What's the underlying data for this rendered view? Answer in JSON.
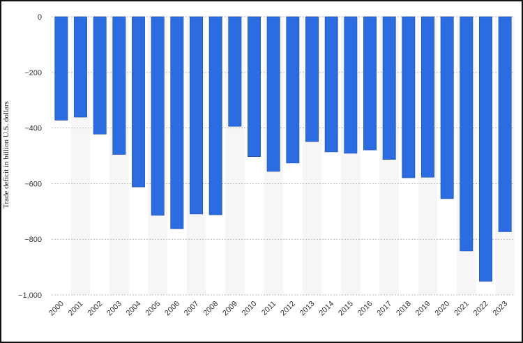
{
  "chart_data": {
    "type": "bar",
    "ylabel": "Trade deficit in billion U.S. dollars",
    "xlabel": "",
    "title": "",
    "categories": [
      "2000",
      "2001",
      "2002",
      "2003",
      "2004",
      "2005",
      "2006",
      "2007",
      "2008",
      "2009",
      "2010",
      "2011",
      "2012",
      "2013",
      "2014",
      "2015",
      "2016",
      "2017",
      "2018",
      "2019",
      "2020",
      "2021",
      "2022",
      "2023"
    ],
    "values": [
      -372,
      -361,
      -422,
      -495,
      -612,
      -714,
      -762,
      -709,
      -712,
      -394,
      -503,
      -556,
      -526,
      -449,
      -486,
      -491,
      -479,
      -513,
      -579,
      -577,
      -654,
      -842,
      -951,
      -773
    ],
    "ylim": [
      -1000,
      0
    ],
    "yticks": [
      0,
      -200,
      -400,
      -600,
      -800,
      -1000
    ],
    "ytick_labels": [
      "0",
      "−200",
      "−400",
      "−600",
      "−800",
      "−1,000"
    ],
    "grid": true,
    "colors": {
      "bar": "#2b6de0",
      "bar_edge": "#1848a8",
      "stripe": "#f6f6f6",
      "grid": "#b5b5b5",
      "axis_text": "#333333"
    }
  }
}
